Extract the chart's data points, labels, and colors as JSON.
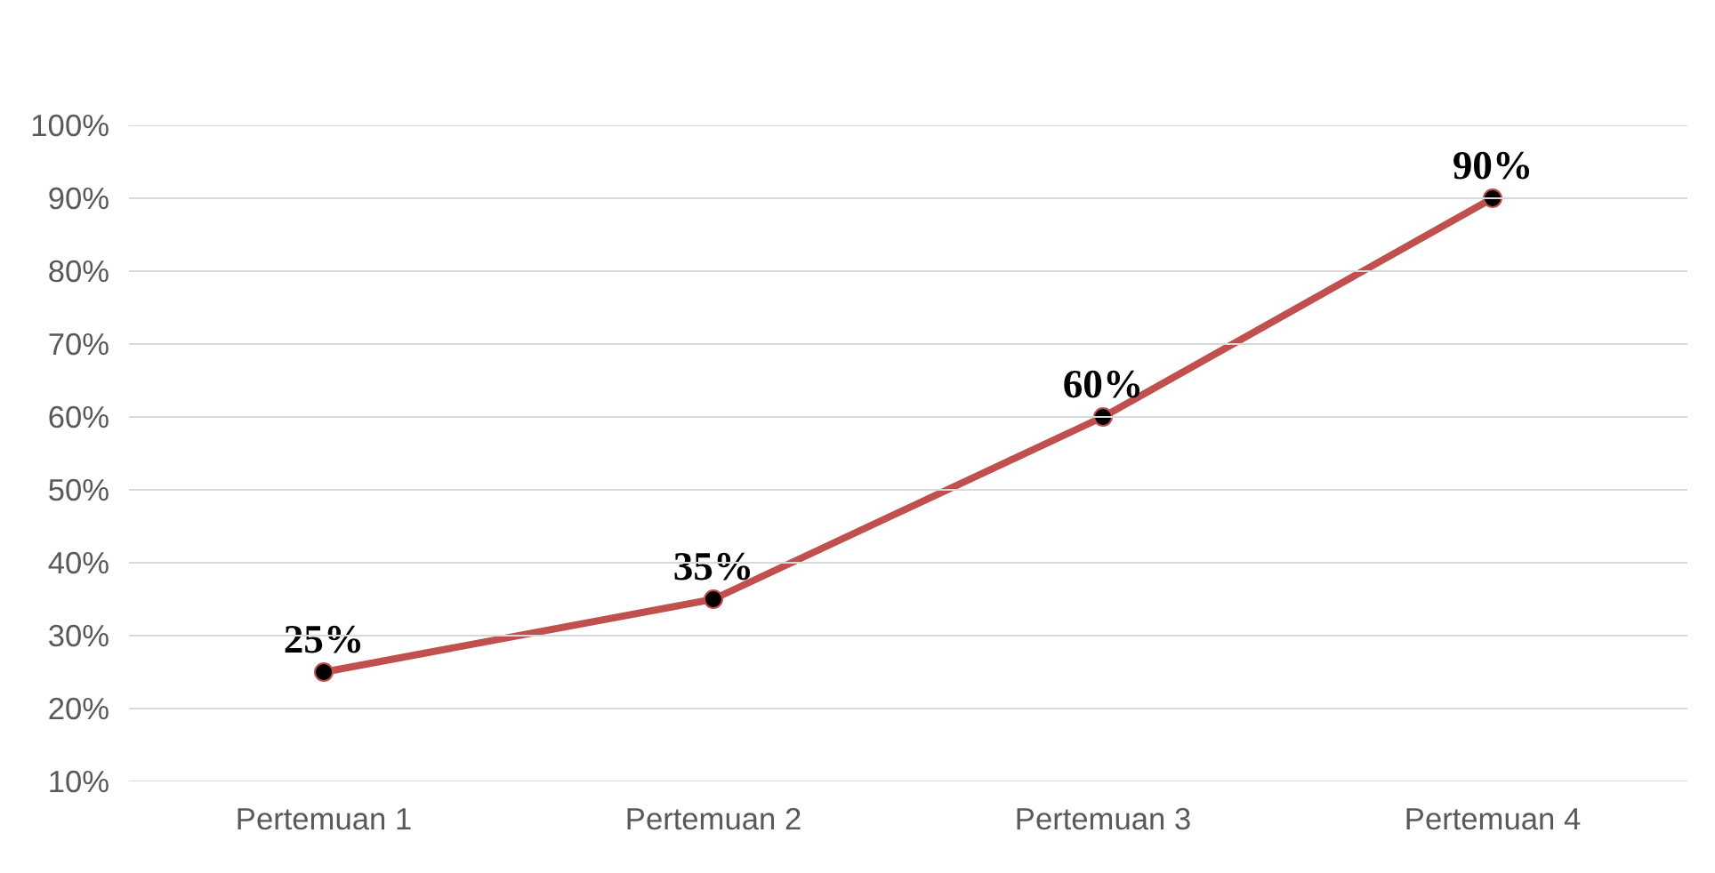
{
  "chart_data": {
    "type": "line",
    "categories": [
      "Pertemuan 1",
      "Pertemuan 2",
      "Pertemuan 3",
      "Pertemuan 4"
    ],
    "values": [
      25,
      35,
      60,
      90
    ],
    "value_labels": [
      "25%",
      "35%",
      "60%",
      "90%"
    ],
    "color": "#c0504d",
    "marker": "circle",
    "line_style": "solid",
    "grid": "y",
    "ylim": [
      10,
      100
    ],
    "yticks": [
      {
        "value": 10,
        "label": "10%"
      },
      {
        "value": 20,
        "label": "20%"
      },
      {
        "value": 30,
        "label": "30%"
      },
      {
        "value": 40,
        "label": "40%"
      },
      {
        "value": 50,
        "label": "50%"
      },
      {
        "value": 60,
        "label": "60%"
      },
      {
        "value": 70,
        "label": "70%"
      },
      {
        "value": 80,
        "label": "80%"
      },
      {
        "value": 90,
        "label": "90%"
      },
      {
        "value": 100,
        "label": "100%"
      }
    ]
  }
}
